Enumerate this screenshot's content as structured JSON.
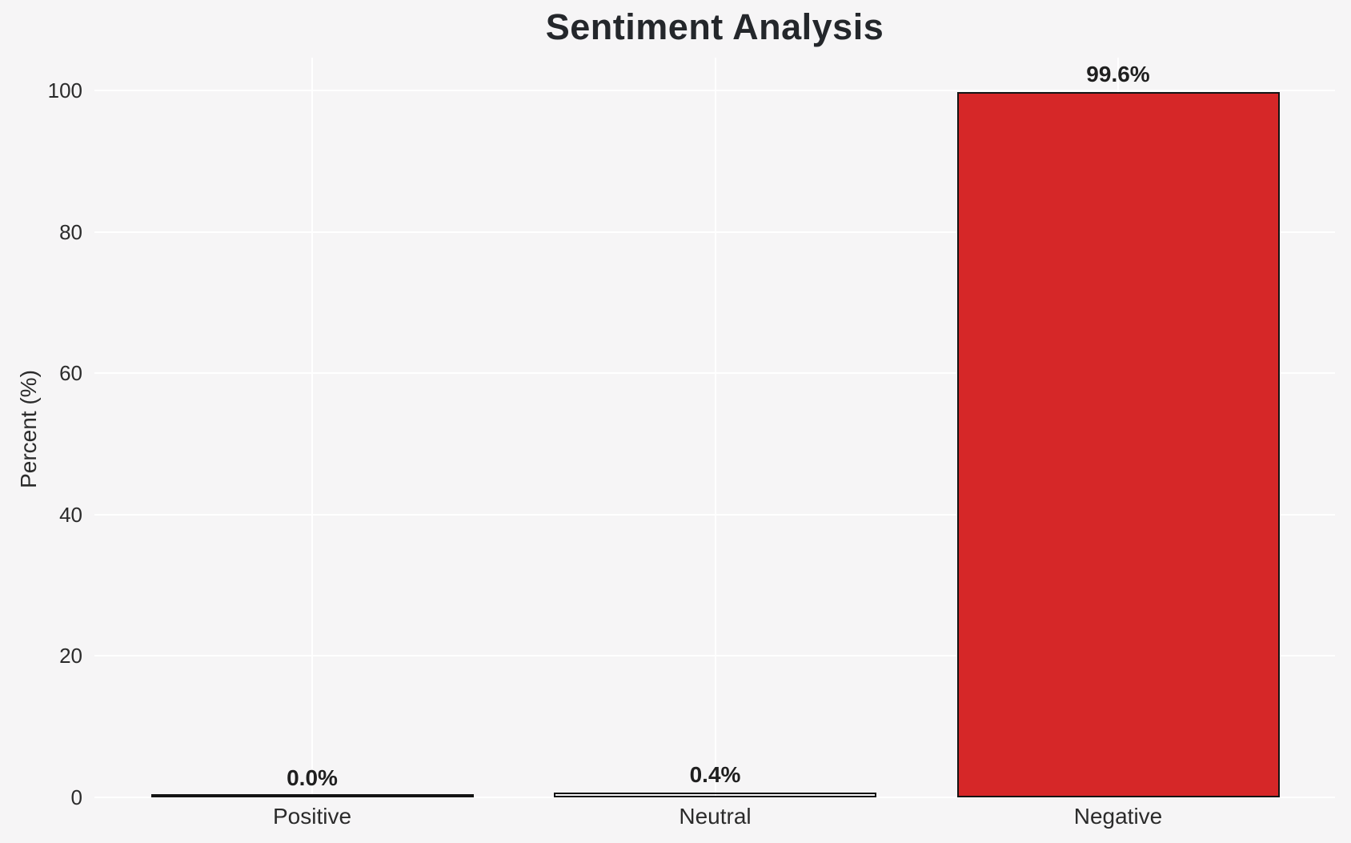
{
  "title": "Sentiment Analysis",
  "chart_data": {
    "type": "bar",
    "title": "Sentiment Analysis",
    "xlabel": "",
    "ylabel": "Percent (%)",
    "categories": [
      "Positive",
      "Neutral",
      "Negative"
    ],
    "values": [
      0.0,
      0.4,
      99.6
    ],
    "value_labels": [
      "0.0%",
      "0.4%",
      "99.6%"
    ],
    "yticks": [
      0,
      20,
      40,
      60,
      80,
      100
    ],
    "ylim": [
      0,
      104.7
    ],
    "grid": true,
    "gridline_color": "#ffffff",
    "background_color": "#f6f5f6",
    "bar_fill_colors": [
      null,
      null,
      "#d62728"
    ],
    "bar_edge_color": "#141414",
    "legend": null
  }
}
